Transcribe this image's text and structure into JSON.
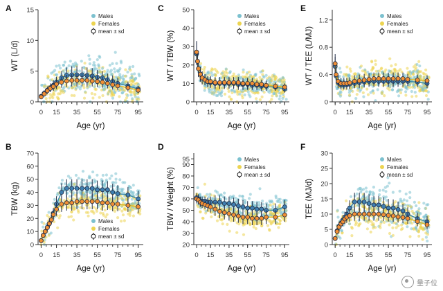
{
  "colors": {
    "males": "#3f8fb0",
    "females": "#e0b92a",
    "males_scatter": "#7cc1cf",
    "females_scatter": "#ecd451",
    "mean_fill_males": "#3f7fb0",
    "mean_fill_females": "#f08f35",
    "mean_stroke": "#1f2a44"
  },
  "watermark": {
    "text": "量子位",
    "icon": "wechat-logo-icon"
  },
  "chart_data": [
    {
      "id": "A",
      "letter": "A",
      "type": "scatter",
      "title": "",
      "xlabel": "Age (yr)",
      "ylabel": "WT (L/d)",
      "xlim": [
        -3,
        100
      ],
      "ylim": [
        0,
        15
      ],
      "xticks": [
        0,
        15,
        35,
        55,
        75,
        95
      ],
      "xtick_labels": [
        "0",
        "15",
        "35",
        "55",
        "75",
        "95"
      ],
      "yticks": [
        0,
        5,
        10,
        15
      ],
      "ytick_labels": [
        "0",
        "5",
        "10",
        "15"
      ],
      "legend_position": "top-right",
      "legend": [
        "Males",
        "Females",
        "mean ± sd"
      ],
      "cloud": {
        "males_spread": 1.5,
        "females_spread": 1.2
      },
      "series": [
        {
          "name": "Males",
          "x": [
            0,
            3,
            6,
            9,
            12,
            15,
            20,
            25,
            30,
            35,
            40,
            45,
            50,
            55,
            60,
            65,
            70,
            75,
            85,
            95
          ],
          "mean": [
            0.9,
            1.4,
            1.9,
            2.3,
            2.7,
            3.2,
            3.9,
            4.3,
            4.4,
            4.4,
            4.4,
            4.3,
            4.2,
            4.0,
            3.9,
            3.6,
            3.3,
            3.0,
            2.6,
            2.1
          ],
          "sd": [
            0.3,
            0.5,
            0.6,
            0.7,
            0.8,
            0.9,
            1.1,
            1.3,
            1.4,
            1.4,
            1.3,
            1.3,
            1.3,
            1.2,
            1.1,
            1.0,
            1.0,
            0.9,
            0.7,
            0.5
          ]
        },
        {
          "name": "Females",
          "x": [
            0,
            3,
            6,
            9,
            12,
            15,
            20,
            25,
            30,
            35,
            40,
            45,
            50,
            55,
            60,
            65,
            70,
            75,
            85,
            95
          ],
          "mean": [
            0.8,
            1.3,
            1.8,
            2.2,
            2.5,
            2.9,
            3.2,
            3.4,
            3.5,
            3.5,
            3.5,
            3.5,
            3.4,
            3.3,
            3.2,
            3.0,
            2.8,
            2.6,
            2.3,
            1.9
          ],
          "sd": [
            0.3,
            0.4,
            0.5,
            0.6,
            0.7,
            0.8,
            0.9,
            1.0,
            1.0,
            1.0,
            1.0,
            1.0,
            0.9,
            0.9,
            0.9,
            0.8,
            0.8,
            0.7,
            0.6,
            0.5
          ]
        }
      ]
    },
    {
      "id": "C",
      "letter": "C",
      "type": "scatter",
      "title": "",
      "xlabel": "Age (yr)",
      "ylabel": "WT / TBW (%)",
      "xlim": [
        -3,
        100
      ],
      "ylim": [
        0,
        50
      ],
      "xticks": [
        0,
        15,
        35,
        55,
        75,
        95
      ],
      "xtick_labels": [
        "0",
        "15",
        "35",
        "55",
        "75",
        "95"
      ],
      "yticks": [
        0,
        10,
        20,
        30,
        40,
        50
      ],
      "ytick_labels": [
        "0",
        "10",
        "20",
        "30",
        "40",
        "50"
      ],
      "legend_position": "top-right",
      "legend": [
        "Males",
        "Females",
        "mean ± sd"
      ],
      "cloud": {
        "males_spread": 3.5,
        "females_spread": 3.5
      },
      "series": [
        {
          "name": "Males",
          "x": [
            0,
            1,
            2,
            4,
            6,
            9,
            12,
            15,
            20,
            25,
            30,
            35,
            40,
            45,
            50,
            55,
            60,
            65,
            70,
            75,
            85,
            95
          ],
          "mean": [
            26,
            22,
            18,
            15,
            13,
            12,
            11,
            10.5,
            10,
            10,
            10,
            10,
            10,
            9.5,
            9.5,
            9.5,
            9,
            9,
            8.5,
            8.5,
            8,
            7
          ],
          "sd": [
            6,
            5,
            4.5,
            4,
            3.5,
            3,
            3,
            3,
            3,
            3,
            3,
            3,
            3,
            3,
            3,
            3,
            2.5,
            2.5,
            2.5,
            2.5,
            2,
            2
          ]
        },
        {
          "name": "Females",
          "x": [
            0,
            1,
            2,
            4,
            6,
            9,
            12,
            15,
            20,
            25,
            30,
            35,
            40,
            45,
            50,
            55,
            60,
            65,
            70,
            75,
            85,
            95
          ],
          "mean": [
            27,
            22,
            18,
            15,
            13,
            12,
            11,
            11,
            10.5,
            10.5,
            10.5,
            10.5,
            10.5,
            10.5,
            10,
            10,
            10,
            9.5,
            9.5,
            9,
            8.5,
            8
          ],
          "sd": [
            6,
            5,
            4.5,
            4,
            3.5,
            3,
            3,
            3,
            3,
            3,
            3,
            3,
            3,
            3,
            3,
            3,
            3,
            2.5,
            2.5,
            2.5,
            2,
            2
          ]
        }
      ]
    },
    {
      "id": "E",
      "letter": "E",
      "type": "scatter",
      "title": "",
      "xlabel": "Age (yr)",
      "ylabel": "WT / TEE (L/MJ)",
      "xlim": [
        -3,
        100
      ],
      "ylim": [
        0,
        1.35
      ],
      "xticks": [
        0,
        15,
        35,
        55,
        75,
        95
      ],
      "xtick_labels": [
        "0",
        "15",
        "35",
        "55",
        "75",
        "95"
      ],
      "yticks": [
        0,
        0.4,
        0.8,
        1.2
      ],
      "ytick_labels": [
        "0",
        "0.4",
        "0.8",
        "1.2"
      ],
      "legend_position": "top-right",
      "legend": [
        "Males",
        "Females",
        "mean ± sd"
      ],
      "cloud": {
        "males_spread": 0.1,
        "females_spread": 0.1
      },
      "series": [
        {
          "name": "Males",
          "x": [
            0,
            1,
            3,
            6,
            9,
            12,
            15,
            20,
            25,
            30,
            35,
            40,
            45,
            50,
            55,
            60,
            65,
            70,
            75,
            85,
            95
          ],
          "mean": [
            0.52,
            0.38,
            0.28,
            0.25,
            0.25,
            0.25,
            0.26,
            0.27,
            0.28,
            0.29,
            0.3,
            0.3,
            0.3,
            0.3,
            0.3,
            0.3,
            0.3,
            0.3,
            0.3,
            0.29,
            0.27
          ],
          "sd": [
            0.14,
            0.1,
            0.08,
            0.07,
            0.07,
            0.07,
            0.07,
            0.07,
            0.08,
            0.08,
            0.08,
            0.08,
            0.08,
            0.08,
            0.08,
            0.08,
            0.08,
            0.08,
            0.07,
            0.07,
            0.07
          ]
        },
        {
          "name": "Females",
          "x": [
            0,
            1,
            3,
            6,
            9,
            12,
            15,
            20,
            25,
            30,
            35,
            40,
            45,
            50,
            55,
            60,
            65,
            70,
            75,
            85,
            95
          ],
          "mean": [
            0.56,
            0.4,
            0.3,
            0.27,
            0.27,
            0.27,
            0.28,
            0.3,
            0.31,
            0.32,
            0.33,
            0.34,
            0.34,
            0.34,
            0.34,
            0.34,
            0.34,
            0.34,
            0.33,
            0.32,
            0.31
          ],
          "sd": [
            0.14,
            0.1,
            0.08,
            0.08,
            0.08,
            0.08,
            0.08,
            0.09,
            0.09,
            0.09,
            0.09,
            0.09,
            0.09,
            0.09,
            0.09,
            0.09,
            0.09,
            0.09,
            0.08,
            0.08,
            0.08
          ]
        }
      ]
    },
    {
      "id": "B",
      "letter": "B",
      "type": "scatter",
      "title": "",
      "xlabel": "Age (yr)",
      "ylabel": "TBW (kg)",
      "xlim": [
        -3,
        100
      ],
      "ylim": [
        0,
        70
      ],
      "xticks": [
        0,
        15,
        35,
        55,
        75,
        95
      ],
      "xtick_labels": [
        "0",
        "15",
        "35",
        "55",
        "75",
        "95"
      ],
      "yticks": [
        0,
        10,
        20,
        30,
        40,
        50,
        60,
        70
      ],
      "ytick_labels": [
        "0",
        "10",
        "20",
        "30",
        "40",
        "50",
        "60",
        "70"
      ],
      "legend_position": "bottom-right",
      "legend": [
        "Males",
        "Females",
        "mean ± sd"
      ],
      "cloud": {
        "males_spread": 6,
        "females_spread": 5
      },
      "series": [
        {
          "name": "Males",
          "x": [
            0,
            2,
            4,
            6,
            8,
            10,
            12,
            15,
            20,
            25,
            30,
            35,
            40,
            45,
            50,
            55,
            60,
            65,
            70,
            75,
            85,
            95
          ],
          "mean": [
            3,
            7,
            10,
            13,
            16,
            19,
            24,
            31,
            40,
            43,
            43,
            43,
            43,
            43,
            43,
            42,
            42,
            42,
            40,
            39,
            38,
            35
          ],
          "sd": [
            1,
            2,
            2,
            2.5,
            3,
            3.5,
            4,
            6,
            7,
            7,
            7,
            7,
            7,
            7,
            7,
            7,
            7,
            6.5,
            6.5,
            6.5,
            6,
            6
          ]
        },
        {
          "name": "Females",
          "x": [
            0,
            2,
            4,
            6,
            8,
            10,
            12,
            15,
            20,
            25,
            30,
            35,
            40,
            45,
            50,
            55,
            60,
            65,
            70,
            75,
            85,
            95
          ],
          "mean": [
            3,
            7,
            10,
            13,
            16,
            19,
            23,
            27,
            31,
            32,
            32,
            33,
            33,
            33,
            33,
            33,
            32,
            32,
            31,
            31,
            30,
            29
          ],
          "sd": [
            1,
            2,
            2,
            2.5,
            3,
            3.5,
            4,
            5,
            6,
            6,
            6,
            6,
            6,
            6,
            6,
            6,
            6,
            5.5,
            5.5,
            5.5,
            5,
            5
          ]
        }
      ]
    },
    {
      "id": "D",
      "letter": "D",
      "type": "scatter",
      "title": "",
      "xlabel": "Age (yr)",
      "ylabel": "TBW / Weight (%)",
      "xlim": [
        -3,
        100
      ],
      "ylim": [
        20,
        100
      ],
      "xticks": [
        0,
        15,
        35,
        55,
        75,
        95
      ],
      "xtick_labels": [
        "0",
        "15",
        "35",
        "55",
        "75",
        "95"
      ],
      "yticks": [
        20,
        30,
        40,
        50,
        60,
        70,
        80,
        90
      ],
      "ytick_labels": [
        "20",
        "30",
        "40",
        "50",
        "60",
        "70",
        "80",
        "90"
      ],
      "extra_ytick": {
        "value": 95,
        "label": "95"
      },
      "legend_position": "top-right",
      "legend": [
        "Males",
        "Females",
        "mean ± sd"
      ],
      "cloud": {
        "males_spread": 5,
        "females_spread": 5
      },
      "series": [
        {
          "name": "Males",
          "x": [
            0,
            2,
            4,
            6,
            9,
            12,
            15,
            20,
            25,
            30,
            35,
            40,
            45,
            50,
            55,
            60,
            65,
            70,
            75,
            85,
            95
          ],
          "mean": [
            61,
            60,
            58,
            58,
            58,
            57,
            57,
            57,
            57,
            56,
            56,
            55,
            54,
            53,
            52,
            52,
            51,
            51,
            50,
            50,
            53
          ],
          "sd": [
            4,
            4,
            4,
            4,
            4,
            4,
            5,
            6,
            6,
            6,
            6,
            6,
            6,
            6,
            6,
            6,
            6,
            6,
            6,
            6,
            6
          ]
        },
        {
          "name": "Females",
          "x": [
            0,
            2,
            4,
            6,
            9,
            12,
            15,
            20,
            25,
            30,
            35,
            40,
            45,
            50,
            55,
            60,
            65,
            70,
            75,
            85,
            95
          ],
          "mean": [
            60,
            59,
            57,
            56,
            55,
            54,
            53,
            51,
            49,
            48,
            47,
            46,
            45,
            44,
            44,
            43,
            43,
            43,
            44,
            44,
            46
          ],
          "sd": [
            4,
            4,
            4,
            4,
            4,
            5,
            5,
            6,
            6,
            6,
            6,
            6,
            6,
            6,
            6,
            6,
            6,
            6,
            6,
            6,
            6
          ]
        }
      ]
    },
    {
      "id": "F",
      "letter": "F",
      "type": "scatter",
      "title": "",
      "xlabel": "Age (yr)",
      "ylabel": "TEE (MJ/d)",
      "xlim": [
        -3,
        100
      ],
      "ylim": [
        0,
        30
      ],
      "xticks": [
        0,
        15,
        35,
        55,
        75,
        95
      ],
      "xtick_labels": [
        "0",
        "15",
        "35",
        "55",
        "75",
        "95"
      ],
      "yticks": [
        0,
        5,
        10,
        15,
        20,
        25,
        30
      ],
      "ytick_labels": [
        "0",
        "5",
        "10",
        "15",
        "20",
        "25",
        "30"
      ],
      "legend_position": "top-right",
      "legend": [
        "Males",
        "Females",
        "mean ± sd"
      ],
      "cloud": {
        "males_spread": 3,
        "females_spread": 2.5
      },
      "series": [
        {
          "name": "Males",
          "x": [
            0,
            2,
            4,
            6,
            8,
            10,
            12,
            15,
            20,
            25,
            30,
            35,
            40,
            45,
            50,
            55,
            60,
            65,
            70,
            75,
            85,
            95
          ],
          "mean": [
            2,
            4.5,
            6,
            7,
            8,
            9,
            10,
            12,
            14,
            14,
            14,
            13.5,
            13,
            13,
            12.5,
            12,
            12,
            11.5,
            11,
            10,
            8.5,
            7.5
          ],
          "sd": [
            0.7,
            1,
            1.2,
            1.5,
            1.6,
            1.8,
            2,
            2.5,
            3,
            3,
            3,
            3,
            3,
            3,
            3,
            3,
            2.8,
            2.6,
            2.4,
            2.2,
            2,
            1.8
          ]
        },
        {
          "name": "Females",
          "x": [
            0,
            2,
            4,
            6,
            8,
            10,
            12,
            15,
            20,
            25,
            30,
            35,
            40,
            45,
            50,
            55,
            60,
            65,
            70,
            75,
            85,
            95
          ],
          "mean": [
            2,
            4.3,
            5.8,
            6.8,
            7.5,
            8.4,
            9,
            9.5,
            10,
            10,
            10,
            10,
            10,
            10,
            9.8,
            9.6,
            9.4,
            9.1,
            8.9,
            8.6,
            7.6,
            6.5
          ],
          "sd": [
            0.7,
            1,
            1.2,
            1.5,
            1.6,
            1.7,
            1.9,
            2,
            2.2,
            2.2,
            2.2,
            2.2,
            2.2,
            2.2,
            2.1,
            2,
            2,
            1.9,
            1.8,
            1.8,
            1.6,
            1.5
          ]
        }
      ]
    }
  ]
}
